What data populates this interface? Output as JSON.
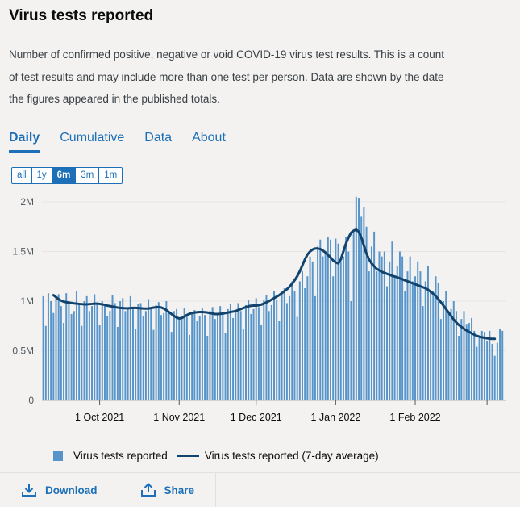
{
  "card": {
    "title": "Virus tests reported",
    "description": "Number of confirmed positive, negative or void COVID-19 virus test results. This is a count of test results and may include more than one test per person. Data are shown by the date the figures appeared in the published totals."
  },
  "tabs": [
    {
      "label": "Daily",
      "active": true
    },
    {
      "label": "Cumulative",
      "active": false
    },
    {
      "label": "Data",
      "active": false
    },
    {
      "label": "About",
      "active": false
    }
  ],
  "ranges": [
    {
      "label": "all",
      "active": false
    },
    {
      "label": "1y",
      "active": false
    },
    {
      "label": "6m",
      "active": true
    },
    {
      "label": "3m",
      "active": false
    },
    {
      "label": "1m",
      "active": false
    }
  ],
  "legend": {
    "bars": "Virus tests reported",
    "line": "Virus tests reported (7-day average)"
  },
  "footer": {
    "download": "Download",
    "share": "Share"
  },
  "colors": {
    "bar": "#5694ca",
    "line": "#12436d",
    "link": "#1d70b8"
  },
  "chart_data": {
    "type": "bar",
    "title": "",
    "xlabel": "",
    "ylabel": "",
    "ylim": [
      0,
      2000000
    ],
    "y_ticks": [
      0,
      500000,
      1000000,
      1500000,
      2000000
    ],
    "y_tick_labels": [
      "0",
      "0.5M",
      "1M",
      "1.5M",
      "2M"
    ],
    "x_start": "2021-09-09",
    "x_end": "2022-03-08",
    "x_ticks": [
      {
        "date": "2021-10-01",
        "label": "1 Oct 2021"
      },
      {
        "date": "2021-11-01",
        "label": "1 Nov 2021"
      },
      {
        "date": "2021-12-01",
        "label": "1 Dec 2021"
      },
      {
        "date": "2022-01-01",
        "label": "1 Jan 2022"
      },
      {
        "date": "2022-02-01",
        "label": "1 Feb 2022"
      },
      {
        "date": "2022-03-01",
        "label": ""
      }
    ],
    "grid": true,
    "legend_position": "bottom",
    "series": [
      {
        "name": "Virus tests reported",
        "type": "bar",
        "values": [
          1050000,
          750000,
          1080000,
          1000000,
          880000,
          1050000,
          1070000,
          950000,
          780000,
          1080000,
          1000000,
          870000,
          900000,
          1100000,
          980000,
          750000,
          1000000,
          1050000,
          900000,
          950000,
          1070000,
          980000,
          760000,
          1000000,
          960000,
          850000,
          900000,
          1060000,
          980000,
          740000,
          1000000,
          1030000,
          900000,
          920000,
          1050000,
          940000,
          720000,
          970000,
          980000,
          850000,
          900000,
          1020000,
          940000,
          710000,
          960000,
          990000,
          860000,
          880000,
          1000000,
          900000,
          690000,
          900000,
          920000,
          820000,
          830000,
          930000,
          860000,
          660000,
          880000,
          910000,
          800000,
          850000,
          930000,
          860000,
          650000,
          900000,
          940000,
          820000,
          870000,
          950000,
          880000,
          680000,
          920000,
          970000,
          830000,
          900000,
          980000,
          900000,
          720000,
          960000,
          1010000,
          870000,
          920000,
          1030000,
          940000,
          760000,
          1010000,
          1060000,
          900000,
          960000,
          1100000,
          1010000,
          800000,
          1080000,
          1130000,
          980000,
          1050000,
          1200000,
          1100000,
          840000,
          1200000,
          1300000,
          1130000,
          1250000,
          1450000,
          1400000,
          1050000,
          1550000,
          1620000,
          1450000,
          1500000,
          1650000,
          1620000,
          1250000,
          1630000,
          1580000,
          1400000,
          1450000,
          1650000,
          1500000,
          1000000,
          1700000,
          2050000,
          2040000,
          1850000,
          1950000,
          1750000,
          1300000,
          1550000,
          1700000,
          1300000,
          1500000,
          1450000,
          1500000,
          1150000,
          1400000,
          1600000,
          1250000,
          1350000,
          1500000,
          1450000,
          1100000,
          1300000,
          1450000,
          1200000,
          1250000,
          1400000,
          1300000,
          950000,
          1200000,
          1350000,
          1100000,
          1100000,
          1250000,
          1180000,
          820000,
          1000000,
          1100000,
          900000,
          920000,
          1000000,
          900000,
          650000,
          820000,
          900000,
          770000,
          780000,
          830000,
          700000,
          540000,
          650000,
          700000,
          690000,
          600000,
          700000,
          570000,
          450000,
          580000,
          720000,
          700000
        ]
      },
      {
        "name": "Virus tests reported (7-day average)",
        "type": "line",
        "end_date": "2022-03-04",
        "values": [
          1060000,
          1040000,
          1020000,
          1005000,
          995000,
          990000,
          985000,
          982000,
          978000,
          975000,
          972000,
          970000,
          968000,
          968000,
          970000,
          972000,
          975000,
          975000,
          972000,
          968000,
          962000,
          955000,
          950000,
          945000,
          940000,
          935000,
          932000,
          930000,
          928000,
          928000,
          930000,
          932000,
          932000,
          930000,
          928000,
          926000,
          925000,
          926000,
          930000,
          935000,
          938000,
          940000,
          936000,
          925000,
          910000,
          890000,
          870000,
          850000,
          835000,
          825000,
          830000,
          845000,
          860000,
          872000,
          880000,
          885000,
          888000,
          890000,
          890000,
          888000,
          885000,
          880000,
          875000,
          870000,
          870000,
          872000,
          875000,
          880000,
          885000,
          890000,
          895000,
          900000,
          910000,
          920000,
          930000,
          940000,
          948000,
          953000,
          955000,
          955000,
          958000,
          965000,
          975000,
          988000,
          1000000,
          1015000,
          1030000,
          1045000,
          1060000,
          1080000,
          1100000,
          1120000,
          1145000,
          1175000,
          1210000,
          1250000,
          1300000,
          1360000,
          1420000,
          1470000,
          1500000,
          1520000,
          1530000,
          1530000,
          1525000,
          1510000,
          1490000,
          1465000,
          1440000,
          1410000,
          1390000,
          1380000,
          1420000,
          1500000,
          1580000,
          1640000,
          1690000,
          1710000,
          1720000,
          1700000,
          1640000,
          1560000,
          1480000,
          1420000,
          1380000,
          1350000,
          1325000,
          1310000,
          1295000,
          1285000,
          1275000,
          1265000,
          1255000,
          1248000,
          1240000,
          1230000,
          1220000,
          1210000,
          1200000,
          1190000,
          1180000,
          1170000,
          1160000,
          1150000,
          1140000,
          1130000,
          1115000,
          1095000,
          1075000,
          1050000,
          1020000,
          990000,
          955000,
          920000,
          885000,
          850000,
          815000,
          785000,
          760000,
          740000,
          720000,
          705000,
          690000,
          675000,
          662000,
          650000,
          642000,
          635000,
          630000,
          625000,
          622000,
          620000,
          620000
        ]
      }
    ]
  }
}
